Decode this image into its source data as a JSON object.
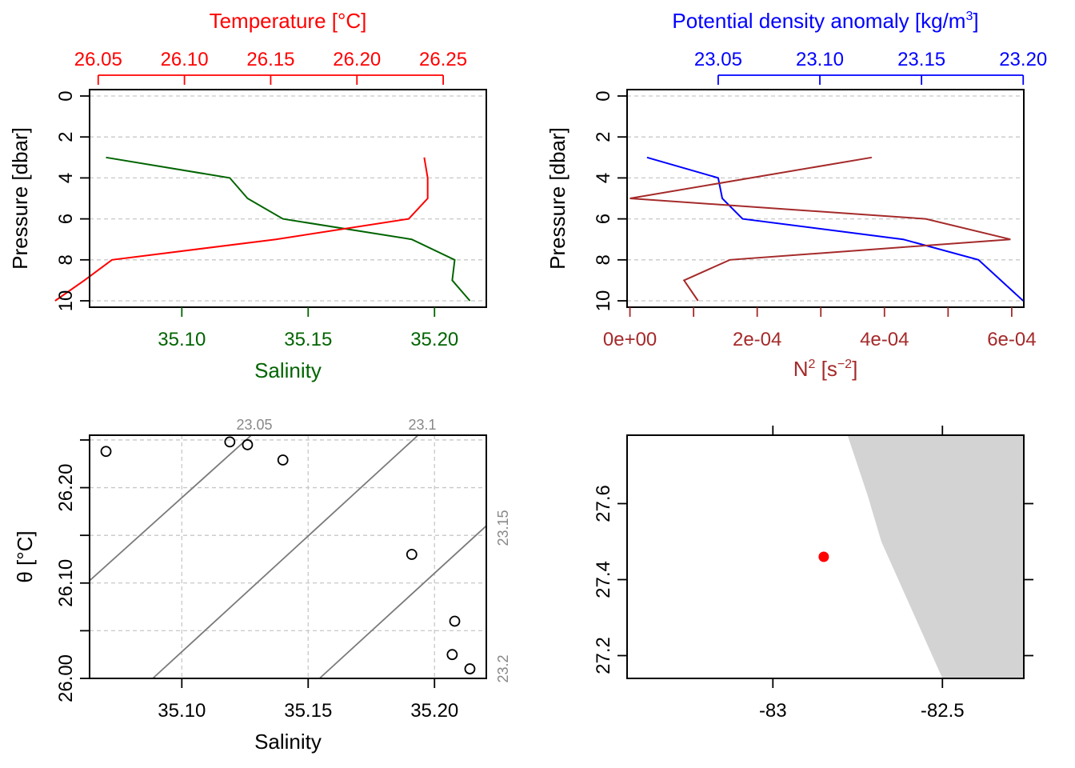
{
  "chart_data": [
    {
      "type": "line",
      "panel": "top-left",
      "y": {
        "label": "Pressure [dbar]",
        "range": [
          10,
          0
        ],
        "ticks": [
          0,
          2,
          4,
          6,
          8,
          10
        ],
        "reversed": true
      },
      "x_bottom": {
        "label": "Salinity",
        "range": [
          35.0635,
          35.2205
        ],
        "ticks": [
          35.1,
          35.15,
          35.2
        ],
        "tick_labels": [
          "35.10",
          "35.15",
          "35.20"
        ],
        "color": "#006400"
      },
      "x_top": {
        "label": "Temperature [°C]",
        "range": [
          26.045,
          26.275
        ],
        "ticks": [
          26.05,
          26.1,
          26.15,
          26.2,
          26.25
        ],
        "tick_labels": [
          "26.05",
          "26.10",
          "26.15",
          "26.20",
          "26.25"
        ],
        "color": "#ff0000"
      },
      "series": [
        {
          "name": "Salinity",
          "axis": "bottom",
          "color": "#006400",
          "points": [
            [
              35.07,
              3
            ],
            [
              35.119,
              4
            ],
            [
              35.126,
              5
            ],
            [
              35.14,
              6
            ],
            [
              35.191,
              7
            ],
            [
              35.208,
              8
            ],
            [
              35.207,
              9
            ],
            [
              35.214,
              10
            ]
          ]
        },
        {
          "name": "Temperature",
          "axis": "top",
          "color": "#ff0000",
          "points": [
            [
              26.239,
              3
            ],
            [
              26.241,
              4
            ],
            [
              26.241,
              5
            ],
            [
              26.23,
              6
            ],
            [
              26.153,
              7
            ],
            [
              26.058,
              8
            ],
            [
              26.042,
              9
            ],
            [
              26.025,
              10
            ]
          ]
        }
      ],
      "grid": "horizontal dashed"
    },
    {
      "type": "line",
      "panel": "top-right",
      "y": {
        "label": "Pressure [dbar]",
        "range": [
          10,
          0
        ],
        "ticks": [
          0,
          2,
          4,
          6,
          8,
          10
        ],
        "reversed": true
      },
      "x_bottom": {
        "label": "N² [s⁻²]",
        "range": [
          -4.5e-06,
          0.000619
        ],
        "ticks": [
          0,
          0.0001,
          0.0002,
          0.0003,
          0.0004,
          0.0005,
          0.0006
        ],
        "tick_labels": [
          "0e+00",
          "",
          "2e-04",
          "",
          "4e-04",
          "",
          "6e-04"
        ],
        "color": "#a52a2a"
      },
      "x_top": {
        "label": "Potential density anomaly [kg/m³]",
        "range": [
          23.0052,
          23.2003
        ],
        "ticks": [
          23.05,
          23.1,
          23.15,
          23.2
        ],
        "tick_labels": [
          "23.05",
          "23.10",
          "23.15",
          "23.20"
        ],
        "color": "#0000ff"
      },
      "series": [
        {
          "name": "Potential density anomaly",
          "axis": "top",
          "color": "#0000ff",
          "points": [
            [
              23.015,
              3
            ],
            [
              23.05,
              4
            ],
            [
              23.052,
              5
            ],
            [
              23.062,
              6
            ],
            [
              23.141,
              7
            ],
            [
              23.178,
              8
            ],
            [
              23.2,
              10
            ]
          ]
        },
        {
          "name": "N²",
          "axis": "bottom",
          "color": "#a52a2a",
          "points": [
            [
              0.00038,
              3
            ],
            [
              0.0,
              5
            ],
            [
              0.000465,
              6
            ],
            [
              0.000598,
              7
            ],
            [
              0.000157,
              8
            ],
            [
              8.5e-05,
              9
            ],
            [
              0.000107,
              10
            ]
          ]
        }
      ],
      "grid": "horizontal dashed"
    },
    {
      "type": "scatter",
      "panel": "bottom-left",
      "x": {
        "label": "Salinity",
        "range": [
          35.0635,
          35.2205
        ],
        "ticks": [
          35.1,
          35.15,
          35.2
        ],
        "tick_labels": [
          "35.10",
          "35.15",
          "35.20"
        ]
      },
      "y": {
        "label": "θ [°C]",
        "range": [
          26.0,
          26.255
        ],
        "ticks": [
          26.0,
          26.05,
          26.1,
          26.15,
          26.2,
          26.25
        ],
        "tick_labels": [
          "26.00",
          "",
          "26.10",
          "",
          "26.20",
          ""
        ]
      },
      "points": [
        [
          35.07,
          26.238
        ],
        [
          35.119,
          26.248
        ],
        [
          35.126,
          26.245
        ],
        [
          35.14,
          26.229
        ],
        [
          35.191,
          26.13
        ],
        [
          35.208,
          26.06
        ],
        [
          35.207,
          26.025
        ],
        [
          35.214,
          26.01
        ]
      ],
      "isopycnals": [
        {
          "label": "23.05",
          "line": [
            [
              35.0635,
              26.1025
            ],
            [
              35.1275,
              26.255
            ]
          ]
        },
        {
          "label": "23.1",
          "line": [
            [
              35.0885,
              26.0
            ],
            [
              35.1935,
              26.255
            ]
          ]
        },
        {
          "label": "23.15",
          "line": [
            [
              35.1545,
              26.0
            ],
            [
              35.2205,
              26.16
            ]
          ]
        },
        {
          "label": "23.2",
          "line": [
            [
              35.0635,
              26.0
            ],
            [
              35.2205,
              26.0
            ]
          ]
        }
      ],
      "grid": "dashed"
    },
    {
      "type": "map",
      "panel": "bottom-right",
      "x": {
        "range": [
          -83.43,
          -82.26
        ],
        "ticks": [
          -83,
          -82.5
        ],
        "tick_labels": [
          "-83",
          "-82.5"
        ]
      },
      "y": {
        "range": [
          27.14,
          27.78
        ],
        "ticks": [
          27.2,
          27.4,
          27.6
        ],
        "tick_labels": [
          "27.2",
          "27.4",
          "27.6"
        ]
      },
      "land": [
        [
          -82.78,
          27.78
        ],
        [
          -82.26,
          27.78
        ],
        [
          -82.26,
          27.14
        ],
        [
          -82.5,
          27.14
        ],
        [
          -82.68,
          27.5
        ],
        [
          -82.72,
          27.62
        ]
      ],
      "station": {
        "lon": -82.85,
        "lat": 27.46,
        "color": "#ff0000"
      },
      "land_color": "#d3d3d3"
    }
  ]
}
